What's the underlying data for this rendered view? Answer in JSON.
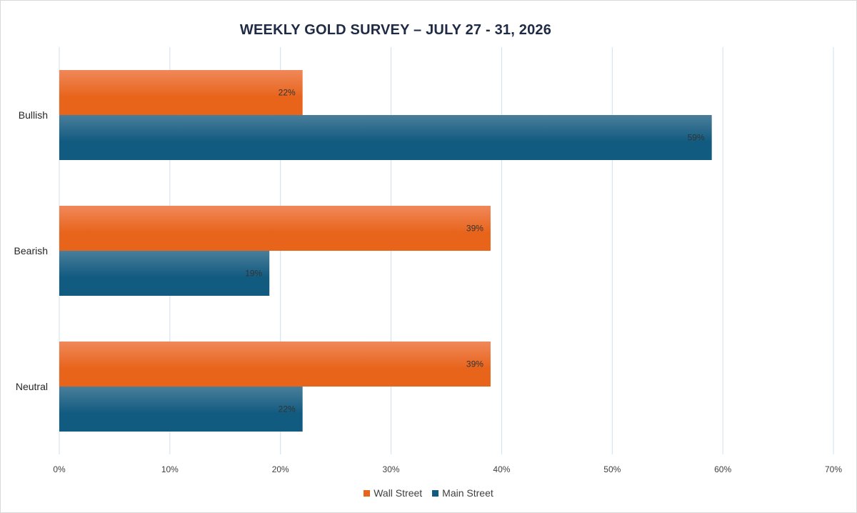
{
  "chart_data": {
    "type": "bar",
    "orientation": "horizontal",
    "title": "WEEKLY GOLD SURVEY – JULY 27 - 31, 2026",
    "categories": [
      "Bullish",
      "Bearish",
      "Neutral"
    ],
    "series": [
      {
        "name": "Wall Street",
        "values": [
          22,
          39,
          39
        ],
        "color": "#e8641b",
        "color_top": "#f0885a"
      },
      {
        "name": "Main Street",
        "values": [
          59,
          19,
          22
        ],
        "color": "#115a80",
        "color_top": "#4a7e9a"
      }
    ],
    "value_format": "percent",
    "xlim": [
      0,
      70
    ],
    "x_ticks": [
      "0%",
      "10%",
      "20%",
      "30%",
      "40%",
      "50%",
      "60%",
      "70%"
    ],
    "grid": true,
    "grid_color": "#cfe0ee",
    "legend_position": "bottom"
  }
}
